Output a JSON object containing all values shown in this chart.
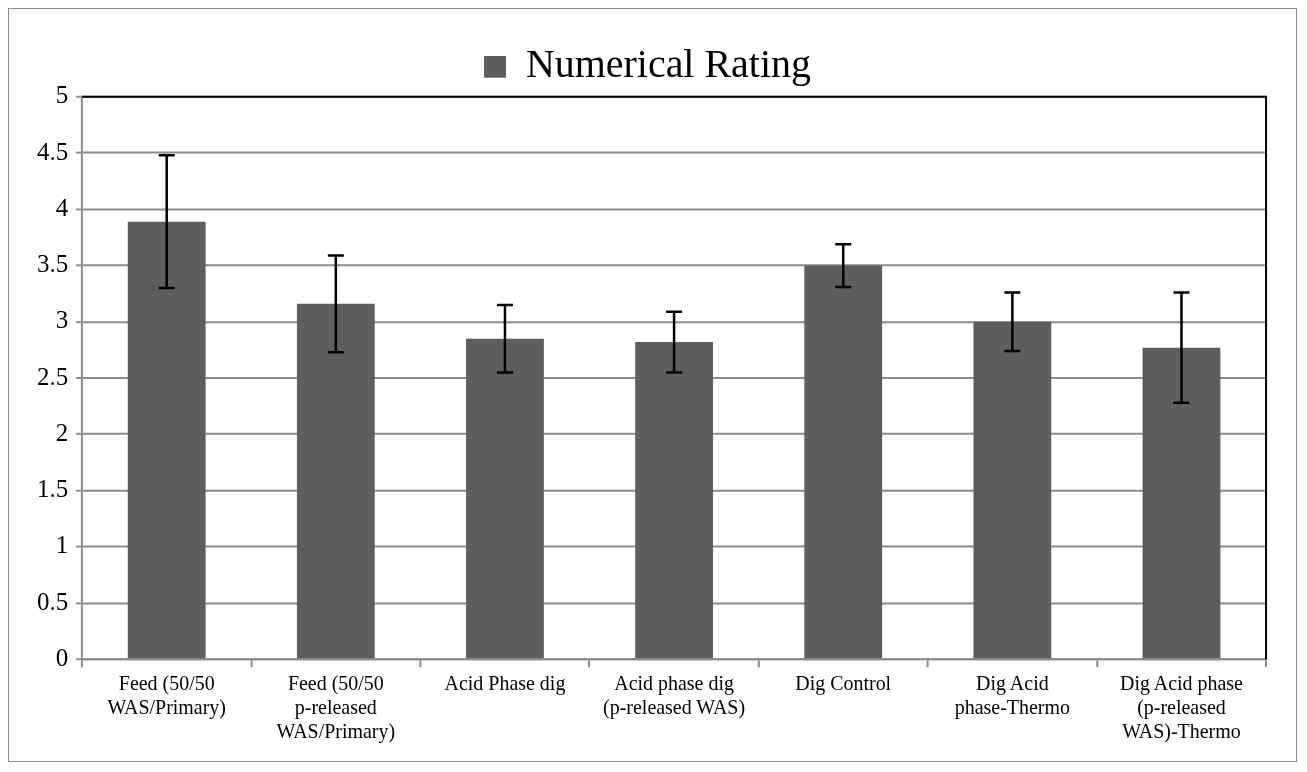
{
  "chart_data": {
    "type": "bar",
    "categories": [
      "Feed (50/50 WAS/Primary)",
      "Feed (50/50 p-released WAS/Primary)",
      "Acid Phase dig",
      "Acid phase dig (p-released WAS)",
      "Dig Control",
      "Dig Acid phase-Thermo",
      "Dig Acid phase (p-released WAS)-Thermo"
    ],
    "series": [
      {
        "name": "Numerical Rating",
        "color": "#5e5e5e",
        "values": [
          3.89,
          3.16,
          2.85,
          2.82,
          3.5,
          3.0,
          2.77
        ],
        "errors": [
          0.59,
          0.43,
          0.3,
          0.27,
          0.19,
          0.26,
          0.49
        ]
      }
    ],
    "ylim": [
      0,
      5
    ],
    "yticks": [
      0,
      0.5,
      1,
      1.5,
      2,
      2.5,
      3,
      3.5,
      4,
      4.5,
      5
    ],
    "grid": "y",
    "legend": "top"
  }
}
